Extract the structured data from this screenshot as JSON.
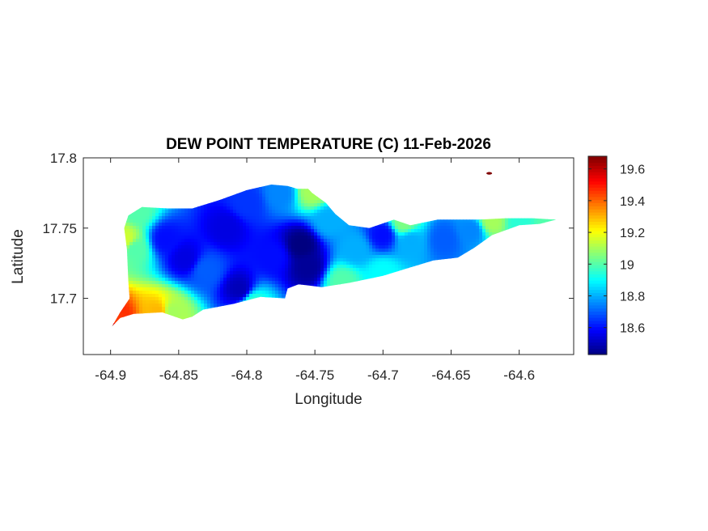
{
  "chart_data": {
    "type": "heatmap",
    "title": "DEW POINT TEMPERATURE (C) 11-Feb-2026",
    "xlabel": "Longitude",
    "ylabel": "Latitude",
    "xlim": [
      -64.92,
      -64.56
    ],
    "ylim": [
      17.66,
      17.8
    ],
    "x_ticks": [
      -64.9,
      -64.85,
      -64.8,
      -64.75,
      -64.7,
      -64.65,
      -64.6
    ],
    "x_tick_labels": [
      "-64.9",
      "-64.85",
      "-64.8",
      "-64.75",
      "-64.7",
      "-64.65",
      "-64.6"
    ],
    "y_ticks": [
      17.7,
      17.75,
      17.8
    ],
    "y_tick_labels": [
      "17.7",
      "17.75",
      "17.8"
    ],
    "colormap": "jet",
    "colorbar": {
      "clim": [
        18.43,
        19.68
      ],
      "ticks": [
        18.6,
        18.8,
        19.0,
        19.2,
        19.4,
        19.6
      ],
      "tick_labels": [
        "18.6",
        "18.8",
        "19",
        "19.2",
        "19.4",
        "19.6"
      ],
      "location": "east"
    },
    "island_outline": [
      [
        -64.899,
        17.68
      ],
      [
        -64.893,
        17.686
      ],
      [
        -64.883,
        17.689
      ],
      [
        -64.862,
        17.69
      ],
      [
        -64.847,
        17.685
      ],
      [
        -64.84,
        17.687
      ],
      [
        -64.832,
        17.692
      ],
      [
        -64.81,
        17.696
      ],
      [
        -64.79,
        17.701
      ],
      [
        -64.772,
        17.7
      ],
      [
        -64.77,
        17.707
      ],
      [
        -64.762,
        17.71
      ],
      [
        -64.745,
        17.708
      ],
      [
        -64.725,
        17.711
      ],
      [
        -64.7,
        17.716
      ],
      [
        -64.68,
        17.722
      ],
      [
        -64.663,
        17.727
      ],
      [
        -64.645,
        17.729
      ],
      [
        -64.633,
        17.736
      ],
      [
        -64.62,
        17.745
      ],
      [
        -64.6,
        17.752
      ],
      [
        -64.585,
        17.753
      ],
      [
        -64.573,
        17.756
      ],
      [
        -64.59,
        17.757
      ],
      [
        -64.61,
        17.757
      ],
      [
        -64.63,
        17.756
      ],
      [
        -64.66,
        17.756
      ],
      [
        -64.68,
        17.752
      ],
      [
        -64.692,
        17.756
      ],
      [
        -64.71,
        17.75
      ],
      [
        -64.725,
        17.752
      ],
      [
        -64.735,
        17.76
      ],
      [
        -64.742,
        17.768
      ],
      [
        -64.752,
        17.775
      ],
      [
        -64.755,
        17.778
      ],
      [
        -64.763,
        17.778
      ],
      [
        -64.77,
        17.78
      ],
      [
        -64.782,
        17.781
      ],
      [
        -64.8,
        17.777
      ],
      [
        -64.82,
        17.77
      ],
      [
        -64.84,
        17.764
      ],
      [
        -64.858,
        17.764
      ],
      [
        -64.877,
        17.765
      ],
      [
        -64.887,
        17.759
      ],
      [
        -64.89,
        17.75
      ],
      [
        -64.888,
        17.735
      ],
      [
        -64.887,
        17.712
      ],
      [
        -64.886,
        17.7
      ],
      [
        -64.893,
        17.69
      ],
      [
        -64.899,
        17.68
      ]
    ],
    "temperature_field": [
      {
        "lon": -64.9,
        "lat": 17.68,
        "value": 19.68
      },
      {
        "lon": -64.895,
        "lat": 17.684,
        "value": 19.45
      },
      {
        "lon": -64.889,
        "lat": 17.742,
        "value": 19.15
      },
      {
        "lon": -64.882,
        "lat": 17.735,
        "value": 19.0
      },
      {
        "lon": -64.88,
        "lat": 17.762,
        "value": 19.0
      },
      {
        "lon": -64.865,
        "lat": 17.69,
        "value": 19.3
      },
      {
        "lon": -64.855,
        "lat": 17.69,
        "value": 19.1
      },
      {
        "lon": -64.86,
        "lat": 17.742,
        "value": 18.6
      },
      {
        "lon": -64.845,
        "lat": 17.728,
        "value": 18.55
      },
      {
        "lon": -64.83,
        "lat": 17.72,
        "value": 18.7
      },
      {
        "lon": -64.815,
        "lat": 17.75,
        "value": 18.55
      },
      {
        "lon": -64.805,
        "lat": 17.706,
        "value": 18.5
      },
      {
        "lon": -64.8,
        "lat": 17.768,
        "value": 18.65
      },
      {
        "lon": -64.795,
        "lat": 17.697,
        "value": 18.95
      },
      {
        "lon": -64.78,
        "lat": 17.73,
        "value": 18.6
      },
      {
        "lon": -64.775,
        "lat": 17.775,
        "value": 18.75
      },
      {
        "lon": -64.76,
        "lat": 17.738,
        "value": 18.43
      },
      {
        "lon": -64.755,
        "lat": 17.722,
        "value": 18.46
      },
      {
        "lon": -64.752,
        "lat": 17.776,
        "value": 19.1
      },
      {
        "lon": -64.74,
        "lat": 17.755,
        "value": 18.8
      },
      {
        "lon": -64.73,
        "lat": 17.712,
        "value": 19.0
      },
      {
        "lon": -64.72,
        "lat": 17.735,
        "value": 18.8
      },
      {
        "lon": -64.7,
        "lat": 17.745,
        "value": 18.6
      },
      {
        "lon": -64.7,
        "lat": 17.718,
        "value": 18.9
      },
      {
        "lon": -64.68,
        "lat": 17.74,
        "value": 18.8
      },
      {
        "lon": -64.655,
        "lat": 17.742,
        "value": 18.7
      },
      {
        "lon": -64.635,
        "lat": 17.748,
        "value": 18.75
      },
      {
        "lon": -64.685,
        "lat": 17.754,
        "value": 19.05
      },
      {
        "lon": -64.62,
        "lat": 17.755,
        "value": 19.1
      },
      {
        "lon": -64.6,
        "lat": 17.754,
        "value": 18.95
      },
      {
        "lon": -64.578,
        "lat": 17.755,
        "value": 19.0
      },
      {
        "lon": -64.622,
        "lat": 17.789,
        "value": 19.68
      }
    ]
  }
}
